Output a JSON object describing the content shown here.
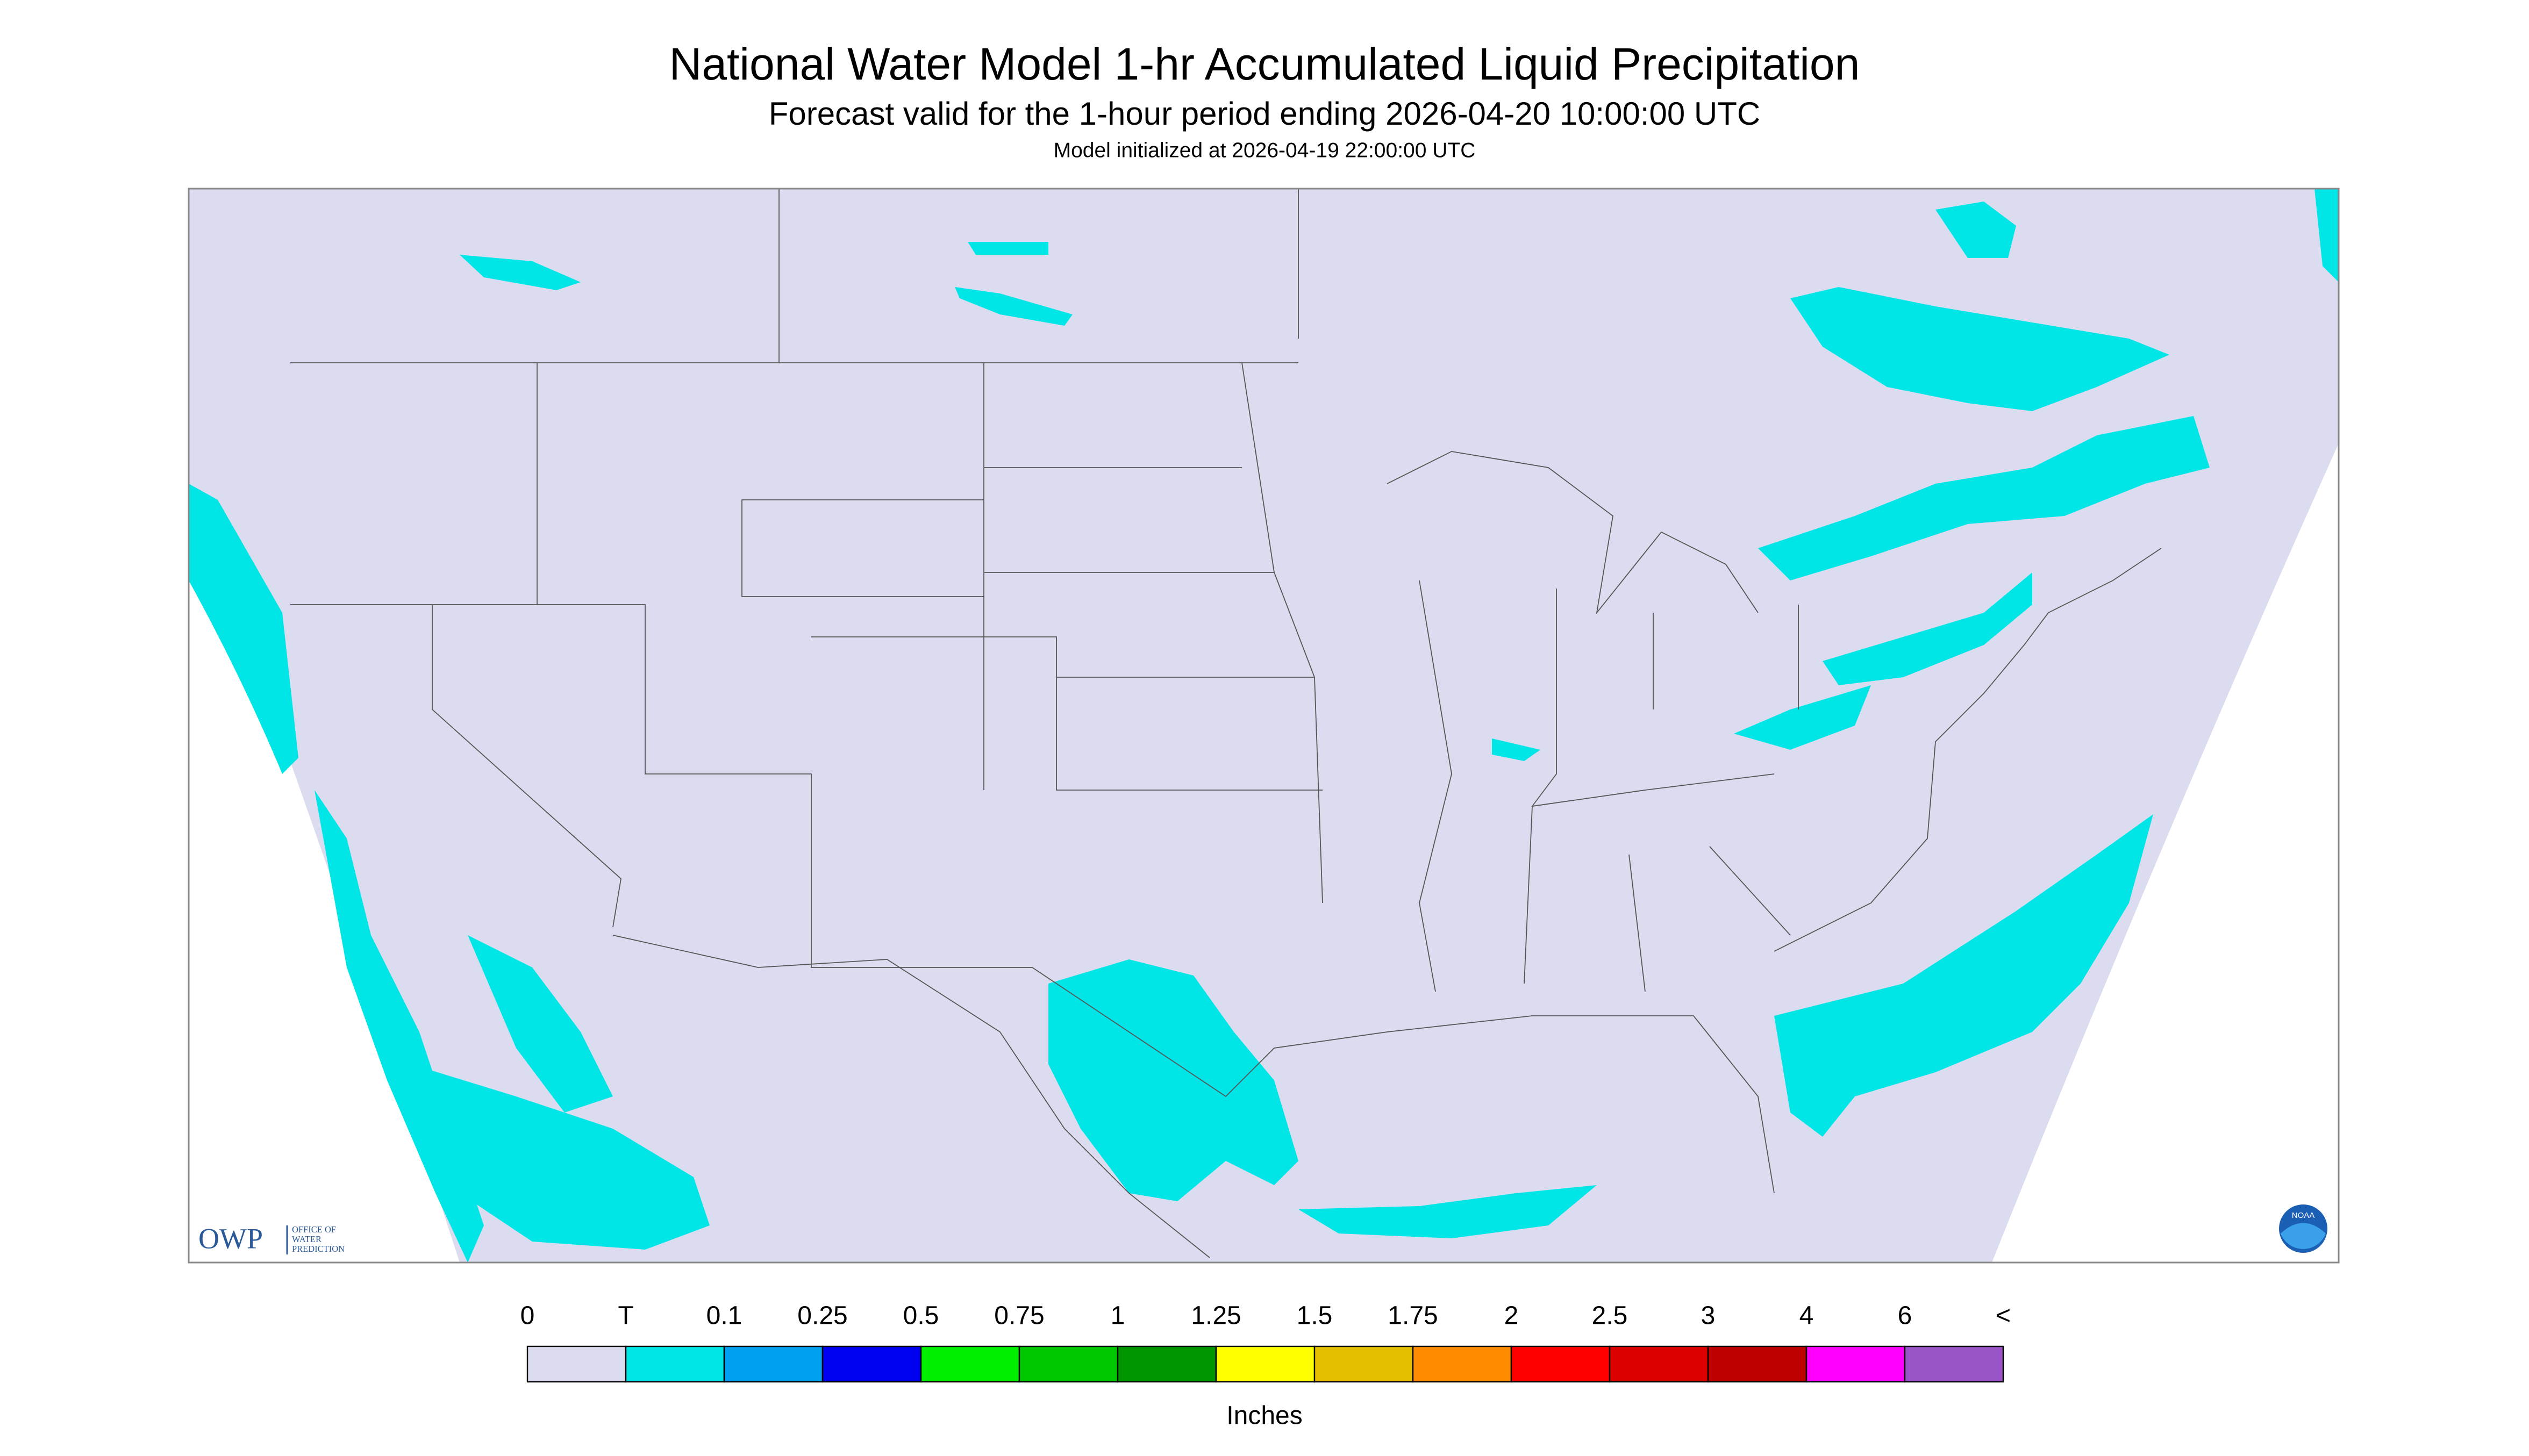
{
  "header": {
    "title": "National Water Model 1-hr Accumulated Liquid Precipitation",
    "subtitle": "Forecast valid for the 1-hour period ending 2026-04-20 10:00:00 UTC",
    "initialized": "Model initialized at 2026-04-19 22:00:00 UTC"
  },
  "legend": {
    "labels": [
      "0",
      "T",
      "0.1",
      "0.25",
      "0.5",
      "0.75",
      "1",
      "1.25",
      "1.5",
      "1.75",
      "2",
      "2.5",
      "3",
      "4",
      "6",
      "<"
    ],
    "colors": [
      "#dcdcf0",
      "#00e6e6",
      "#00a0f0",
      "#0000f0",
      "#00f000",
      "#00c800",
      "#009600",
      "#ffff00",
      "#e6be00",
      "#ff8c00",
      "#ff0000",
      "#dc0000",
      "#be0000",
      "#ff00ff",
      "#9955c8"
    ],
    "unit": "Inches"
  },
  "logos": {
    "owp": "OWP",
    "owp_name": [
      "OFFICE OF",
      "WATER",
      "PREDICTION"
    ],
    "noaa": "NOAA"
  }
}
